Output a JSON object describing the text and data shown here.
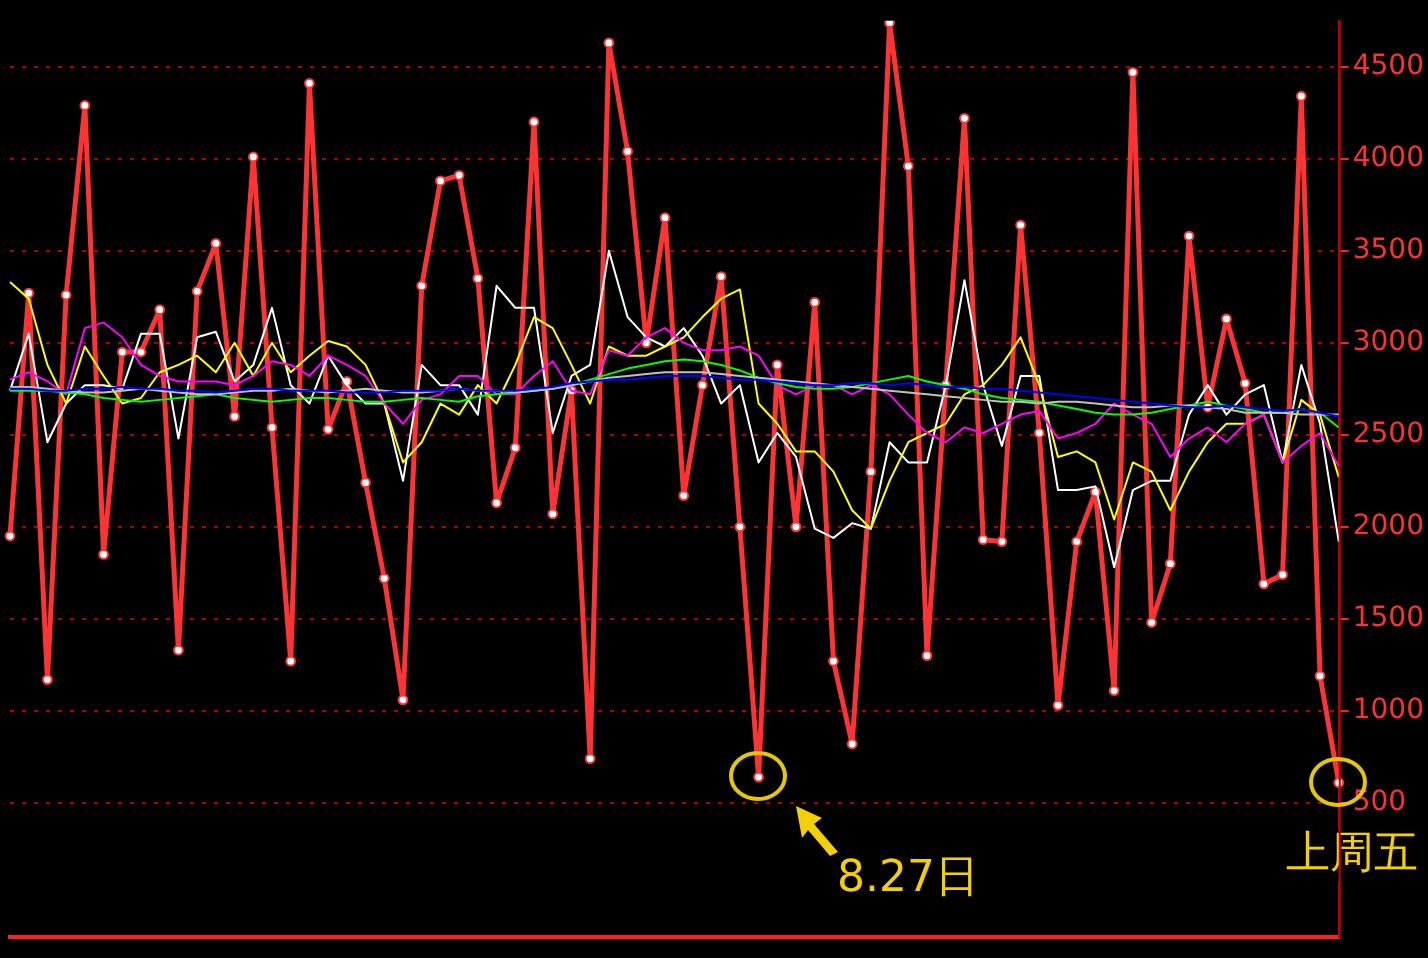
{
  "chart_data": {
    "type": "line",
    "categories": [
      null,
      null,
      null,
      null,
      null,
      null,
      null,
      null,
      null,
      null,
      null,
      null,
      null,
      null,
      null,
      null,
      null,
      null,
      null,
      null,
      null,
      null,
      null,
      null,
      null,
      null,
      null,
      null,
      null,
      null,
      null,
      null,
      null,
      null,
      null,
      null,
      null,
      null,
      null,
      null,
      null,
      null,
      null,
      null,
      null,
      null,
      null,
      null,
      null,
      null,
      null,
      null,
      null,
      null,
      null,
      null,
      null,
      null,
      null,
      null,
      null,
      null,
      null,
      null,
      null,
      null,
      null,
      null,
      null,
      null,
      null,
      null
    ],
    "series": [
      {
        "color": "#0000ff",
        "values": [
          2750,
          2750,
          2740,
          2740,
          2750,
          2750,
          2760,
          2750,
          2750,
          2740,
          2740,
          2730,
          2740,
          2750,
          2750,
          2740,
          2740,
          2740,
          2730,
          2730,
          2730,
          2740,
          2740,
          2740,
          2750,
          2740,
          2740,
          2740,
          2750,
          2760,
          2780,
          2790,
          2800,
          2800,
          2810,
          2820,
          2820,
          2820,
          2810,
          2800,
          2800,
          2790,
          2780,
          2770,
          2770,
          2780,
          2780,
          2770,
          2780,
          2770,
          2760,
          2760,
          2750,
          2750,
          2740,
          2730,
          2720,
          2710,
          2700,
          2690,
          2680,
          2670,
          2660,
          2650,
          2650,
          2660,
          2650,
          2640,
          2630,
          2640,
          2620,
          2600
        ]
      },
      {
        "color": "#c0c0c0",
        "values": [
          2760,
          2760,
          2750,
          2740,
          2730,
          2730,
          2740,
          2750,
          2740,
          2730,
          2720,
          2720,
          2730,
          2740,
          2740,
          2750,
          2740,
          2730,
          2740,
          2750,
          2740,
          2730,
          2730,
          2740,
          2750,
          2740,
          2740,
          2730,
          2740,
          2750,
          2770,
          2790,
          2810,
          2820,
          2830,
          2840,
          2840,
          2840,
          2830,
          2820,
          2810,
          2800,
          2790,
          2780,
          2770,
          2760,
          2750,
          2740,
          2730,
          2720,
          2710,
          2700,
          2690,
          2680,
          2680,
          2670,
          2680,
          2680,
          2670,
          2660,
          2650,
          2650,
          2660,
          2660,
          2650,
          2640,
          2620,
          2620,
          2620,
          2610,
          2610,
          2610
        ]
      },
      {
        "color": "#00ff00",
        "values": [
          2740,
          2740,
          2740,
          2730,
          2720,
          2700,
          2690,
          2680,
          2690,
          2700,
          2710,
          2720,
          2700,
          2690,
          2680,
          2690,
          2700,
          2700,
          2690,
          2680,
          2680,
          2690,
          2700,
          2690,
          2680,
          2710,
          2720,
          2730,
          2740,
          2750,
          2770,
          2800,
          2830,
          2860,
          2880,
          2900,
          2910,
          2900,
          2880,
          2850,
          2810,
          2780,
          2760,
          2750,
          2750,
          2760,
          2780,
          2800,
          2820,
          2790,
          2770,
          2750,
          2720,
          2700,
          2690,
          2680,
          2660,
          2640,
          2620,
          2610,
          2610,
          2620,
          2640,
          2660,
          2680,
          2660,
          2640,
          2620,
          2620,
          2640,
          2620,
          2540
        ]
      },
      {
        "color": "#ff00ff",
        "values": [
          2800,
          2840,
          2790,
          2720,
          3080,
          3110,
          3030,
          2880,
          2820,
          2790,
          2790,
          2790,
          2770,
          2820,
          2900,
          2880,
          2820,
          2930,
          2880,
          2820,
          2670,
          2560,
          2690,
          2720,
          2820,
          2820,
          2720,
          2720,
          2820,
          2900,
          2740,
          2720,
          2960,
          2930,
          3030,
          3080,
          3000,
          2960,
          2960,
          2980,
          2930,
          2770,
          2720,
          2770,
          2770,
          2720,
          2770,
          2720,
          2610,
          2510,
          2460,
          2540,
          2510,
          2560,
          2610,
          2630,
          2480,
          2510,
          2560,
          2670,
          2610,
          2560,
          2380,
          2480,
          2540,
          2460,
          2560,
          2610,
          2350,
          2440,
          2510,
          2330
        ]
      },
      {
        "color": "#ffff00",
        "values": [
          3330,
          3240,
          2880,
          2670,
          2980,
          2820,
          2670,
          2700,
          2840,
          2880,
          2930,
          2840,
          3000,
          2820,
          3000,
          2840,
          2930,
          3010,
          2980,
          2880,
          2670,
          2350,
          2460,
          2670,
          2610,
          2770,
          2670,
          2880,
          3140,
          3080,
          2880,
          2670,
          2980,
          2930,
          2930,
          2980,
          3030,
          3140,
          3240,
          3290,
          2670,
          2560,
          2410,
          2410,
          2300,
          2090,
          1990,
          2250,
          2460,
          2510,
          2560,
          2720,
          2770,
          2880,
          3030,
          2770,
          2380,
          2410,
          2350,
          2040,
          2350,
          2300,
          2090,
          2300,
          2460,
          2560,
          2560,
          2610,
          2350,
          2690,
          2610,
          2270
        ]
      },
      {
        "color": "#ffffff",
        "values": [
          2740,
          3050,
          2460,
          2670,
          2770,
          2770,
          2750,
          3050,
          3050,
          2480,
          3030,
          3060,
          2790,
          2880,
          3190,
          2770,
          2670,
          2930,
          2770,
          2670,
          2670,
          2250,
          2880,
          2770,
          2770,
          2610,
          3310,
          3190,
          3190,
          2510,
          2820,
          2880,
          3500,
          3140,
          3030,
          2980,
          3080,
          2930,
          2670,
          2770,
          2350,
          2510,
          2380,
          1990,
          1940,
          2020,
          1990,
          2460,
          2350,
          2350,
          2770,
          3340,
          2770,
          2440,
          2820,
          2820,
          2200,
          2200,
          2220,
          1780,
          2200,
          2250,
          2250,
          2610,
          2770,
          2610,
          2720,
          2770,
          2350,
          2880,
          2560,
          1920
        ]
      },
      {
        "color": "#ff3333",
        "marker": "circle",
        "values": [
          1950,
          3270,
          1170,
          3260,
          4290,
          1850,
          2950,
          2950,
          3180,
          1330,
          3280,
          3540,
          2600,
          4010,
          2540,
          1270,
          4410,
          2530,
          2790,
          2240,
          1720,
          1060,
          3310,
          3880,
          3910,
          3350,
          2130,
          2430,
          4200,
          2070,
          2740,
          740,
          4630,
          4040,
          3000,
          3680,
          2170,
          2770,
          3360,
          2000,
          640,
          2880,
          2000,
          3220,
          1270,
          820,
          2300,
          4740,
          3960,
          1300,
          2770,
          4220,
          1930,
          1920,
          3640,
          2510,
          1030,
          1920,
          2190,
          1110,
          4470,
          1480,
          1800,
          3580,
          2650,
          3130,
          2780,
          1690,
          1740,
          4340,
          1190,
          610
        ]
      }
    ],
    "ylim": [
      -230,
      4750
    ],
    "yticks": [
      500,
      1000,
      1500,
      2000,
      2500,
      3000,
      3500,
      4000,
      4500
    ],
    "grid": "y",
    "tick_labels": "y",
    "legend": false,
    "annotations": [
      "8.27日",
      "上周五"
    ]
  }
}
